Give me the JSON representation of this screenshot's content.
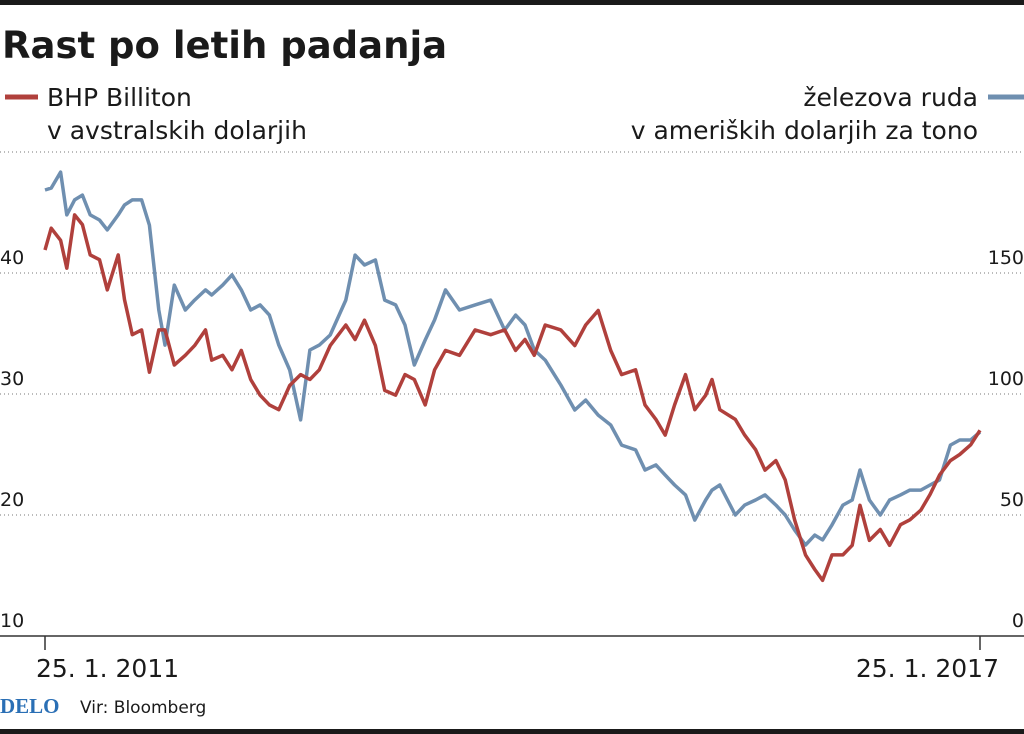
{
  "chart_data": {
    "type": "line",
    "title": "Rast po letih padanja",
    "ylabel": "v avstralskih dolarjih",
    "y2label": "v ameriških dolarjih za tono",
    "source_brand": "DELO",
    "source": "Vir: Bloomberg",
    "x": [
      2011.07,
      2011.11,
      2011.17,
      2011.21,
      2011.26,
      2011.31,
      2011.36,
      2011.42,
      2011.47,
      2011.54,
      2011.58,
      2011.63,
      2011.69,
      2011.74,
      2011.8,
      2011.84,
      2011.9,
      2011.97,
      2012.03,
      2012.1,
      2012.14,
      2012.21,
      2012.27,
      2012.33,
      2012.39,
      2012.45,
      2012.51,
      2012.57,
      2012.64,
      2012.71,
      2012.77,
      2012.83,
      2012.9,
      2013.0,
      2013.06,
      2013.12,
      2013.19,
      2013.25,
      2013.32,
      2013.38,
      2013.44,
      2013.51,
      2013.57,
      2013.64,
      2013.73,
      2013.83,
      2013.93,
      2014.02,
      2014.09,
      2014.15,
      2014.21,
      2014.28,
      2014.38,
      2014.47,
      2014.54,
      2014.62,
      2014.7,
      2014.77,
      2014.86,
      2014.92,
      2014.99,
      2015.05,
      2015.11,
      2015.18,
      2015.24,
      2015.31,
      2015.35,
      2015.4,
      2015.5,
      2015.56,
      2015.63,
      2015.69,
      2015.76,
      2015.82,
      2015.88,
      2015.95,
      2016.01,
      2016.06,
      2016.12,
      2016.19,
      2016.25,
      2016.3,
      2016.36,
      2016.43,
      2016.49,
      2016.56,
      2016.62,
      2016.69,
      2016.75,
      2016.81,
      2016.88,
      2016.94,
      2017.01,
      2017.07
    ],
    "series": [
      {
        "name": "BHP Billiton",
        "color": "#b0403c",
        "axis": "y",
        "values": [
          41.9,
          43.7,
          42.7,
          40.4,
          44.8,
          44.0,
          41.5,
          41.1,
          38.6,
          41.5,
          37.8,
          34.9,
          35.3,
          31.8,
          35.3,
          35.3,
          32.4,
          33.2,
          34.0,
          35.3,
          32.8,
          33.2,
          32.0,
          33.6,
          31.2,
          29.9,
          29.1,
          28.7,
          30.7,
          31.6,
          31.2,
          32.0,
          34.0,
          35.7,
          34.5,
          36.1,
          34.0,
          30.3,
          29.9,
          31.6,
          31.2,
          29.1,
          32.0,
          33.6,
          33.2,
          35.3,
          34.9,
          35.3,
          33.6,
          34.5,
          33.2,
          35.7,
          35.3,
          34.0,
          35.7,
          36.9,
          33.6,
          31.6,
          32.0,
          29.1,
          27.9,
          26.6,
          29.1,
          31.6,
          28.7,
          29.9,
          31.2,
          28.7,
          27.9,
          26.6,
          25.4,
          23.7,
          24.5,
          22.9,
          19.6,
          16.7,
          15.5,
          14.6,
          16.7,
          16.7,
          17.5,
          20.8,
          17.9,
          18.8,
          17.5,
          19.2,
          19.6,
          20.4,
          21.7,
          23.3,
          24.5,
          25.0,
          25.8,
          27.0
        ]
      },
      {
        "name": "železova ruda",
        "color": "#6f8fb0",
        "axis": "y2",
        "values": [
          184.3,
          185.1,
          191.7,
          174.0,
          180.2,
          182.2,
          174.0,
          171.9,
          167.8,
          174.0,
          178.1,
          180.2,
          180.2,
          169.8,
          134.7,
          120.2,
          145.0,
          134.7,
          138.8,
          143.0,
          140.9,
          145.0,
          149.2,
          143.0,
          134.7,
          136.8,
          132.6,
          120.2,
          109.9,
          89.3,
          118.2,
          120.2,
          124.4,
          138.8,
          157.4,
          153.3,
          155.4,
          138.8,
          136.8,
          128.5,
          112.0,
          122.3,
          130.6,
          143.0,
          134.7,
          136.8,
          138.8,
          126.4,
          132.6,
          128.5,
          118.2,
          114.0,
          103.7,
          93.4,
          97.5,
          91.3,
          87.2,
          78.9,
          76.9,
          68.6,
          70.7,
          66.5,
          62.4,
          58.3,
          47.9,
          56.2,
          60.3,
          62.4,
          50.0,
          54.1,
          56.2,
          58.3,
          54.1,
          50.0,
          43.8,
          37.6,
          41.7,
          39.7,
          45.9,
          54.1,
          56.2,
          68.6,
          56.2,
          50.0,
          56.2,
          58.3,
          60.3,
          60.3,
          62.4,
          64.5,
          78.9,
          81.0,
          81.0,
          84.3
        ]
      }
    ],
    "xlim": [
      2011.07,
      2017.07
    ],
    "xticks": [
      {
        "value": 2011.07,
        "label": "25. 1. 2011"
      },
      {
        "value": 2017.07,
        "label": "25. 1. 2017"
      }
    ],
    "ylim": [
      10,
      50
    ],
    "yticks": [
      10,
      20,
      30,
      40
    ],
    "y2lim": [
      0,
      200
    ],
    "y2ticks": [
      0,
      50,
      100,
      150
    ],
    "grid": true
  }
}
